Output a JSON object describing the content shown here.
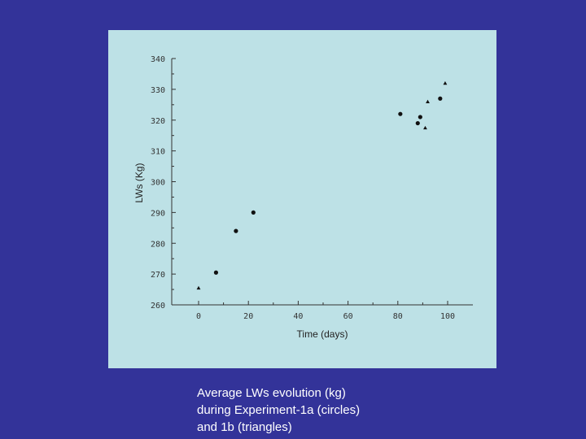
{
  "caption": {
    "lines": [
      "Average LWs evolution (kg)",
      "during Experiment-1a (circles)",
      "and 1b (triangles)"
    ]
  },
  "colors": {
    "slide_bg": "#333399",
    "panel_bg": "#bde1e6",
    "marker": "#111111"
  },
  "chart_data": {
    "type": "scatter",
    "title": "",
    "xlabel": "Time  (days)",
    "ylabel": "LWs (Kg)",
    "xlim": [
      -10,
      110
    ],
    "ylim": [
      260,
      340
    ],
    "xticks": [
      0,
      20,
      40,
      60,
      80,
      100
    ],
    "yticks": [
      260,
      270,
      280,
      290,
      300,
      310,
      320,
      330,
      340
    ],
    "series": [
      {
        "name": "Experiment-1a",
        "marker": "circle",
        "points": [
          [
            7,
            270.5
          ],
          [
            15,
            284
          ],
          [
            22,
            290
          ],
          [
            81,
            322
          ],
          [
            88,
            319
          ],
          [
            97,
            327
          ],
          [
            89,
            321
          ]
        ]
      },
      {
        "name": "Experiment-1b",
        "marker": "triangle",
        "points": [
          [
            0,
            265.5
          ],
          [
            92,
            326
          ],
          [
            99,
            332
          ],
          [
            91,
            317.5
          ]
        ]
      }
    ]
  }
}
